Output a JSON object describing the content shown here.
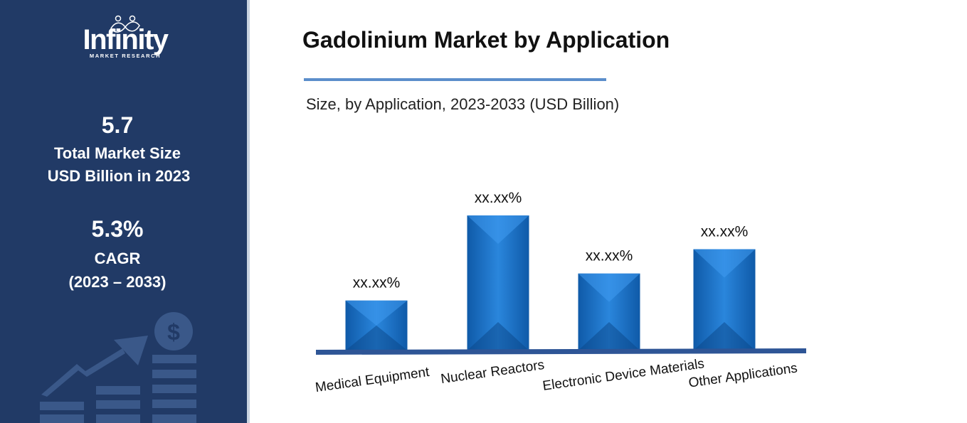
{
  "brand": {
    "name": "Infinity",
    "tagline": "MARKET RESEARCH"
  },
  "stats": {
    "market_size_value": "5.7",
    "market_size_label_1": "Total Market Size",
    "market_size_label_2": "USD Billion in 2023",
    "cagr_value": "5.3%",
    "cagr_label": "CAGR",
    "cagr_period": "(2023 – 2033)"
  },
  "icons": {
    "growth": "growth-arrow-icon",
    "dollar": "dollar-coin-icon"
  },
  "colors": {
    "sidebar": "#213a66",
    "bar": "#1a73c9",
    "bar_dark": "#0f58a6",
    "axis": "#2e5596",
    "accent_rule": "#5b8ecb"
  },
  "chart_data": {
    "type": "bar",
    "title": "Gadolinium Market by Application",
    "subtitle": "Size, by Application, 2023-2033 (USD Billion)",
    "categories": [
      "Medical Equipment",
      "Nuclear Reactors",
      "Electronic Device Materials",
      "Other Applications"
    ],
    "values": [
      0.37,
      1.0,
      0.57,
      0.75
    ],
    "data_labels": [
      "xx.xx%",
      "xx.xx%",
      "xx.xx%",
      "xx.xx%"
    ],
    "ylim": [
      0,
      1.0
    ],
    "grid": false,
    "legend": "none"
  }
}
